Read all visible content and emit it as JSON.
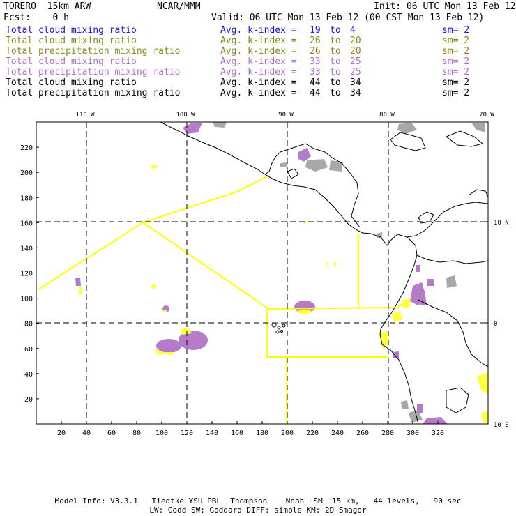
{
  "header": {
    "model": "TORERO  15km ARW",
    "center": "NCAR/MMM",
    "init": "Init: 06 UTC Mon 13 Feb 12",
    "fcst": "Fcst:    0 h",
    "valid": "Valid: 06 UTC Mon 13 Feb 12 (00 CST Mon 13 Feb 12)"
  },
  "legend": [
    {
      "field": "Total cloud mixing ratio",
      "index_label": "Avg. k-index =",
      "k1": "19",
      "to": "to",
      "k2": "4",
      "sm": "sm= 2",
      "color": "#1a1ad0"
    },
    {
      "field": "Total cloud mixing ratio",
      "index_label": "Avg. k-index =",
      "k1": "26",
      "to": "to",
      "k2": "20",
      "sm": "sm= 2",
      "color": "#8a8a1a"
    },
    {
      "field": "Total precipitation mixing ratio",
      "index_label": "Avg. k-index =",
      "k1": "26",
      "to": "to",
      "k2": "20",
      "sm": "sm= 2",
      "color": "#8a8a1a"
    },
    {
      "field": "Total cloud mixing ratio",
      "index_label": "Avg. k-index =",
      "k1": "33",
      "to": "to",
      "k2": "25",
      "sm": "sm= 2",
      "color": "#b270c8"
    },
    {
      "field": "Total precipitation mixing ratio",
      "index_label": "Avg. k-index =",
      "k1": "33",
      "to": "to",
      "k2": "25",
      "sm": "sm= 2",
      "color": "#b270c8"
    },
    {
      "field": "Total cloud mixing ratio",
      "index_label": "Avg. k-index =",
      "k1": "44",
      "to": "to",
      "k2": "34",
      "sm": "sm= 2",
      "color": "#000000"
    },
    {
      "field": "Total precipitation mixing ratio",
      "index_label": "Avg. k-index =",
      "k1": "44",
      "to": "to",
      "k2": "34",
      "sm": "sm= 2",
      "color": "#000000"
    }
  ],
  "map": {
    "lon_labels": [
      "110 W",
      "100 W",
      "90 W",
      "80 W",
      "70 W"
    ],
    "lat_labels": [
      "10 N",
      "0",
      "10 S"
    ],
    "x_ticks": [
      "20",
      "40",
      "60",
      "80",
      "100",
      "120",
      "140",
      "160",
      "180",
      "200",
      "220",
      "240",
      "260",
      "280",
      "300",
      "320"
    ],
    "y_ticks": [
      "220",
      "200",
      "180",
      "160",
      "140",
      "120",
      "100",
      "80",
      "60",
      "40",
      "20"
    ],
    "country_label": "C R",
    "colors": {
      "yellow": "#ffff44",
      "purple": "#b47cc8",
      "gray": "#a8a8a8",
      "outline": "#ffff00"
    }
  },
  "footer": {
    "line1": "Model Info: V3.3.1   Tiedtke YSU PBL  Thompson    Noah LSM  15 km,   44 levels,   90 sec",
    "line2": "LW: Godd SW: Goddard DIFF: simple KM: 2D Smagor"
  }
}
